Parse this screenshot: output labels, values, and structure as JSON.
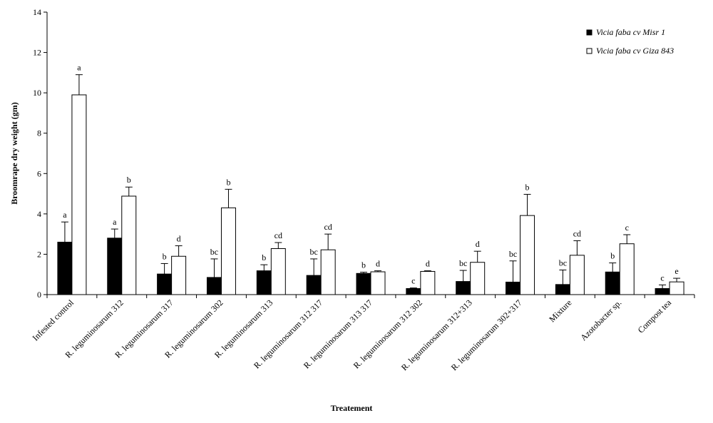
{
  "chart_data": {
    "type": "bar",
    "title": "",
    "xlabel": "Treatement",
    "ylabel": "Broomrape dry weight (gm)",
    "ylim": [
      0,
      14
    ],
    "yticks": [
      0,
      2,
      4,
      6,
      8,
      10,
      12,
      14
    ],
    "grid": false,
    "legend_position": "top-right",
    "categories": [
      "Infested  control",
      "R. leguminosarum 312",
      "R. leguminosarum 317",
      "R. leguminosarum 302",
      "R. leguminosarum 313",
      "R. leguminosarum 312  317",
      "R. leguminosarum 313  317",
      "R. leguminosarum 312  302",
      "R. leguminosarum 312+313",
      "R. leguminosarum 302+317",
      "Mixture",
      "Azotobacter sp.",
      "Compost tea"
    ],
    "series": [
      {
        "name": "Vicia faba cv Misr 1",
        "color": "#000000",
        "values": [
          2.6,
          2.8,
          1.02,
          0.85,
          1.18,
          0.95,
          1.05,
          0.3,
          0.65,
          0.62,
          0.5,
          1.12,
          0.3
        ],
        "errors": [
          1.0,
          0.45,
          0.52,
          0.92,
          0.3,
          0.82,
          0.06,
          0.03,
          0.55,
          1.05,
          0.72,
          0.45,
          0.18
        ],
        "letters": [
          "a",
          "a",
          "b",
          "bc",
          "b",
          "bc",
          "b",
          "c",
          "bc",
          "bc",
          "bc",
          "b",
          "c"
        ]
      },
      {
        "name": "Vicia faba cv Giza 843",
        "color": "#ffffff",
        "values": [
          9.9,
          4.88,
          1.9,
          4.3,
          2.28,
          2.22,
          1.13,
          1.15,
          1.6,
          3.92,
          1.95,
          2.52,
          0.63
        ],
        "errors": [
          1.0,
          0.45,
          0.52,
          0.92,
          0.3,
          0.78,
          0.05,
          0.03,
          0.55,
          1.05,
          0.72,
          0.45,
          0.18
        ],
        "letters": [
          "a",
          "b",
          "d",
          "b",
          "cd",
          "cd",
          "d",
          "d",
          "d",
          "b",
          "cd",
          "c",
          "e"
        ]
      }
    ]
  }
}
